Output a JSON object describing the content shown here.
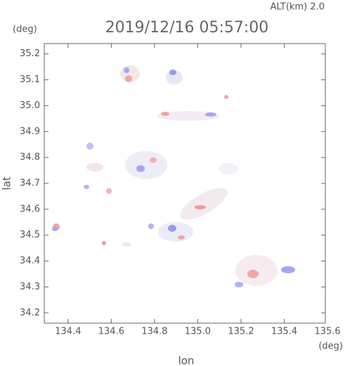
{
  "chart_data": {
    "type": "map",
    "title": "2019/12/16 05:57:00",
    "altitude_label": "ALT(km) 2.0",
    "y_unit": "(deg)",
    "x_unit": "(deg)",
    "x_label": "lon",
    "y_label": "lat",
    "xlim": [
      134.29,
      135.59
    ],
    "ylim": [
      34.16,
      35.24
    ],
    "xticks": [
      134.4,
      134.6,
      134.8,
      {
        "value": 135.0,
        "label": "135.0"
      },
      135.2,
      135.4,
      135.6
    ],
    "yticks": [
      34.2,
      34.3,
      34.4,
      34.5,
      34.6,
      34.7,
      34.8,
      34.9,
      {
        "value": 35.0,
        "label": "35.0"
      },
      35.1,
      35.2
    ]
  }
}
